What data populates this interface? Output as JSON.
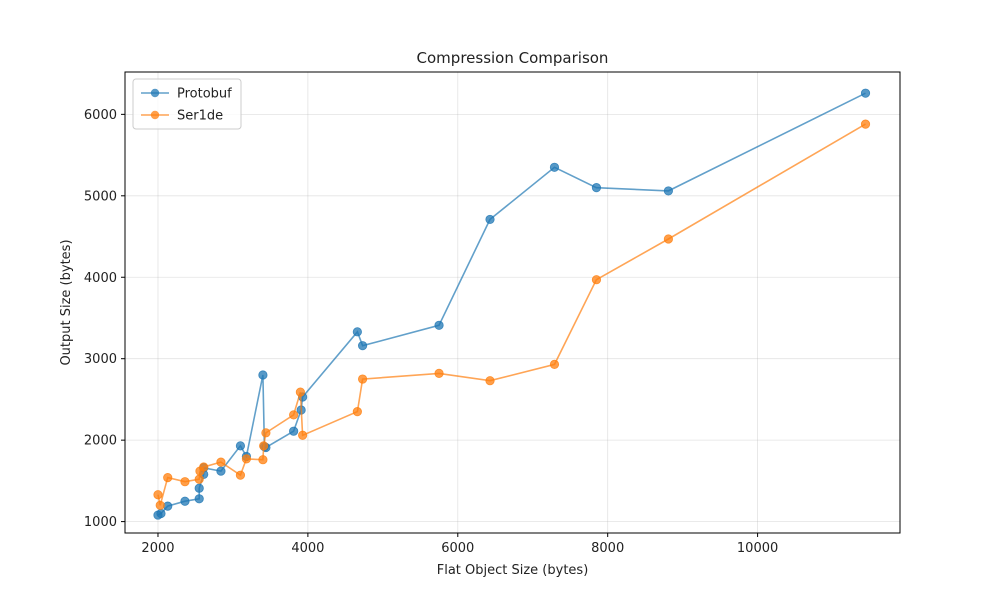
{
  "chart_data": {
    "type": "line",
    "title": "Compression Comparison",
    "xlabel": "Flat Object Size (bytes)",
    "ylabel": "Output Size (bytes)",
    "xlim": [
      1560,
      11900
    ],
    "ylim": [
      860,
      6520
    ],
    "xticks": [
      2000,
      4000,
      6000,
      8000,
      10000
    ],
    "yticks": [
      1000,
      2000,
      3000,
      4000,
      5000,
      6000
    ],
    "grid": true,
    "legend_position": "upper-left",
    "series": [
      {
        "name": "Protobuf",
        "color": "#1f77b4",
        "points": [
          [
            2000,
            1080
          ],
          [
            2040,
            1100
          ],
          [
            2130,
            1190
          ],
          [
            2360,
            1250
          ],
          [
            2550,
            1280
          ],
          [
            2550,
            1410
          ],
          [
            2610,
            1580
          ],
          [
            2610,
            1660
          ],
          [
            2840,
            1620
          ],
          [
            3100,
            1930
          ],
          [
            3180,
            1800
          ],
          [
            3400,
            2800
          ],
          [
            3420,
            1920
          ],
          [
            3440,
            1910
          ],
          [
            3810,
            2110
          ],
          [
            3910,
            2370
          ],
          [
            3930,
            2530
          ],
          [
            4660,
            3330
          ],
          [
            4730,
            3160
          ],
          [
            5750,
            3410
          ],
          [
            6430,
            4710
          ],
          [
            7290,
            5350
          ],
          [
            7850,
            5100
          ],
          [
            8810,
            5060
          ],
          [
            11440,
            6260
          ]
        ]
      },
      {
        "name": "Ser1de",
        "color": "#ff7f0e",
        "points": [
          [
            2000,
            1330
          ],
          [
            2030,
            1200
          ],
          [
            2130,
            1540
          ],
          [
            2360,
            1490
          ],
          [
            2550,
            1520
          ],
          [
            2560,
            1620
          ],
          [
            2610,
            1670
          ],
          [
            2840,
            1730
          ],
          [
            3100,
            1570
          ],
          [
            3180,
            1770
          ],
          [
            3400,
            1760
          ],
          [
            3410,
            1930
          ],
          [
            3440,
            2090
          ],
          [
            3810,
            2310
          ],
          [
            3900,
            2590
          ],
          [
            3930,
            2060
          ],
          [
            4660,
            2350
          ],
          [
            4730,
            2750
          ],
          [
            5750,
            2820
          ],
          [
            6430,
            2730
          ],
          [
            7290,
            2930
          ],
          [
            7850,
            3970
          ],
          [
            8810,
            4470
          ],
          [
            11440,
            5880
          ]
        ]
      }
    ]
  }
}
